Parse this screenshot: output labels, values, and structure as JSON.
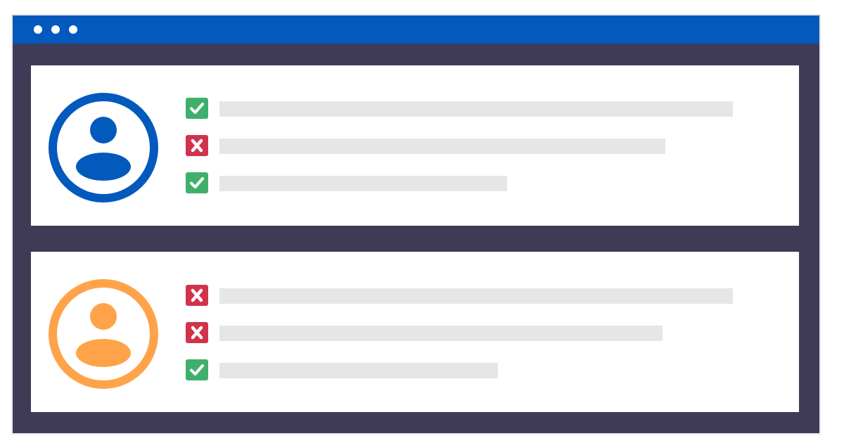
{
  "window": {
    "chrome_color": "#0459bd",
    "frame_color": "#3f3b56",
    "control_dots": 3
  },
  "profiles": [
    {
      "avatar_icon": "user-icon",
      "accent": "#0459bd",
      "items": [
        {
          "status": "pass",
          "icon": "checkmark-icon",
          "color": "#3fb06c"
        },
        {
          "status": "fail",
          "icon": "x-mark-icon",
          "color": "#d1334b"
        },
        {
          "status": "pass",
          "icon": "checkmark-icon",
          "color": "#3fb06c"
        }
      ]
    },
    {
      "avatar_icon": "user-icon",
      "accent": "#ffa34a",
      "items": [
        {
          "status": "fail",
          "icon": "x-mark-icon",
          "color": "#d1334b"
        },
        {
          "status": "fail",
          "icon": "x-mark-icon",
          "color": "#d1334b"
        },
        {
          "status": "pass",
          "icon": "checkmark-icon",
          "color": "#3fb06c"
        }
      ]
    }
  ]
}
